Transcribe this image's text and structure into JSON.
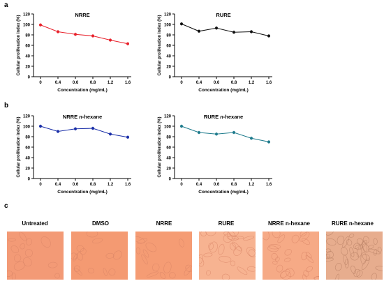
{
  "panels": {
    "a": "a",
    "b": "b",
    "c": "c"
  },
  "chart_data": [
    {
      "type": "line",
      "title": "NRRE",
      "color": "#e8202a",
      "x": [
        0,
        0.4,
        0.6,
        0.8,
        1.2,
        1.6
      ],
      "x_tick_labels": [
        "0",
        "0.4",
        "0.6",
        "0.8",
        "1.2",
        "1.6"
      ],
      "values": [
        99,
        86,
        81,
        78,
        70,
        63
      ],
      "xlabel": "Concentration (mg/mL)",
      "ylabel": "Cellular proliferation index (%)",
      "ylim": [
        0,
        120
      ],
      "y_ticks": [
        0,
        20,
        40,
        60,
        80,
        100,
        120
      ]
    },
    {
      "type": "line",
      "title": "RURE",
      "color": "#111111",
      "x": [
        0,
        0.4,
        0.6,
        0.8,
        1.2,
        1.6
      ],
      "x_tick_labels": [
        "0",
        "0.4",
        "0.6",
        "0.8",
        "1.2",
        "1.6"
      ],
      "values": [
        101,
        87,
        93,
        85,
        86,
        78
      ],
      "xlabel": "Concentration (mg/mL)",
      "ylabel": "Cellular proliferation index (%)",
      "ylim": [
        0,
        120
      ],
      "y_ticks": [
        0,
        20,
        40,
        60,
        80,
        100,
        120
      ]
    },
    {
      "type": "line",
      "title": "NRRE n-hexane",
      "title_main": "NRRE ",
      "title_italic": "n",
      "title_rest": "-hexane",
      "color": "#1a2fa8",
      "x": [
        0,
        0.4,
        0.6,
        0.8,
        1.2,
        1.6
      ],
      "x_tick_labels": [
        "0",
        "0.4",
        "0.6",
        "0.8",
        "1.2",
        "1.6"
      ],
      "values": [
        100,
        90,
        95,
        96,
        85,
        79
      ],
      "xlabel": "Concentration (mg/mL)",
      "ylabel": "Cellular proliferation index (%)",
      "ylim": [
        0,
        120
      ],
      "y_ticks": [
        0,
        20,
        40,
        60,
        80,
        100,
        120
      ]
    },
    {
      "type": "line",
      "title": "RURE n-hexane",
      "title_main": "RURE ",
      "title_italic": "n",
      "title_rest": "-hexane",
      "color": "#1e7b8c",
      "x": [
        0,
        0.4,
        0.6,
        0.8,
        1.2,
        1.6
      ],
      "x_tick_labels": [
        "0",
        "0.4",
        "0.6",
        "0.8",
        "1.2",
        "1.6"
      ],
      "values": [
        100,
        88,
        85,
        88,
        77,
        70
      ],
      "xlabel": "Concentration (mg/mL)",
      "ylabel": "Cellular proliferation index (%)",
      "ylim": [
        0,
        120
      ],
      "y_ticks": [
        0,
        20,
        40,
        60,
        80,
        100,
        120
      ]
    }
  ],
  "micrographs": [
    {
      "label": "Untreated",
      "tint": "#f39a76"
    },
    {
      "label": "DMSO",
      "tint": "#f49a72"
    },
    {
      "label": "NRRE",
      "tint": "#f59c74"
    },
    {
      "label": "RURE",
      "tint": "#f7b391"
    },
    {
      "label": "NRRE n-hexane",
      "tint": "#f6aa86"
    },
    {
      "label": "RURE n-hexane",
      "tint": "#e7ad8e"
    }
  ]
}
